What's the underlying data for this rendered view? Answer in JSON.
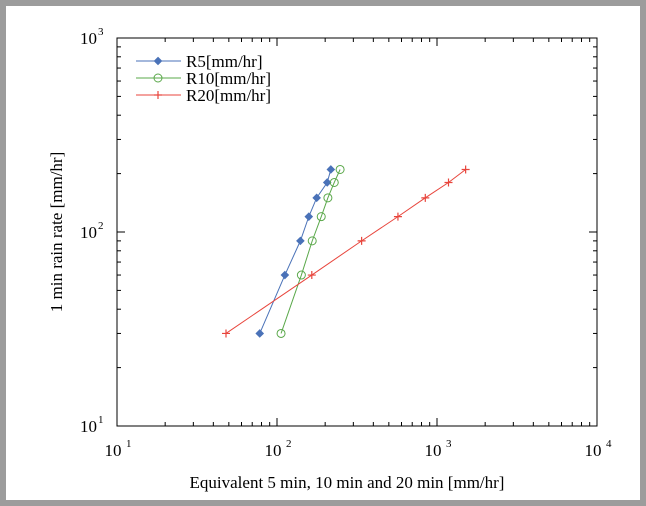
{
  "chart_data": {
    "type": "line",
    "title": "",
    "xlabel": "Equivalent 5 min, 10 min and 20 min [mm/hr]",
    "ylabel": "1 min rain rate [mm/hr]",
    "xscale": "log",
    "yscale": "log",
    "xlim": [
      10,
      10000
    ],
    "ylim": [
      10,
      1000
    ],
    "x_ticks": [
      {
        "base": "10",
        "exp": "1",
        "value": 10
      },
      {
        "base": "10",
        "exp": "2",
        "value": 100
      },
      {
        "base": "10",
        "exp": "3",
        "value": 1000
      },
      {
        "base": "10",
        "exp": "4",
        "value": 10000
      }
    ],
    "y_ticks": [
      {
        "base": "10",
        "exp": "1",
        "value": 10
      },
      {
        "base": "10",
        "exp": "2",
        "value": 100
      },
      {
        "base": "10",
        "exp": "3",
        "value": 1000
      }
    ],
    "grid": false,
    "legend_position": "top-left",
    "series": [
      {
        "name": "R5[mm/hr]",
        "color": "#4a72b8",
        "marker": "diamond",
        "points": [
          [
            78,
            30
          ],
          [
            112,
            60
          ],
          [
            140,
            90
          ],
          [
            158,
            120
          ],
          [
            177,
            150
          ],
          [
            206,
            180
          ],
          [
            217,
            210
          ]
        ]
      },
      {
        "name": "R10[mm/hr]",
        "color": "#5aa84a",
        "marker": "circle",
        "points": [
          [
            106,
            30
          ],
          [
            142,
            60
          ],
          [
            166,
            90
          ],
          [
            189,
            120
          ],
          [
            208,
            150
          ],
          [
            228,
            180
          ],
          [
            248,
            210
          ]
        ]
      },
      {
        "name": "R20[mm/hr]",
        "color": "#e8453c",
        "marker": "plus",
        "points": [
          [
            48,
            30
          ],
          [
            165,
            60
          ],
          [
            338,
            90
          ],
          [
            570,
            120
          ],
          [
            845,
            150
          ],
          [
            1180,
            180
          ],
          [
            1510,
            210
          ]
        ]
      }
    ]
  }
}
